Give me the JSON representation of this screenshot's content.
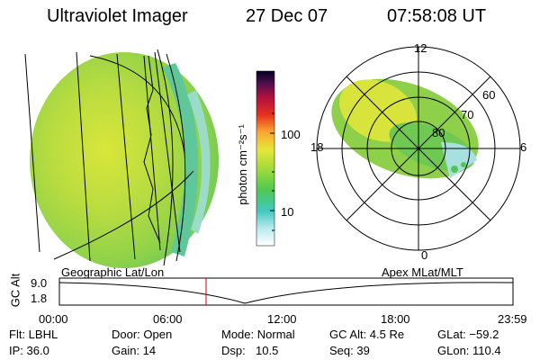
{
  "header": {
    "title": "Ultraviolet Imager",
    "date": "27 Dec 07",
    "time": "07:58:08 UT"
  },
  "colorbar": {
    "label": "photon cm⁻²s⁻¹",
    "tick_labels": [
      "100",
      "10"
    ]
  },
  "polar": {
    "hour_labels": [
      "12",
      "18",
      "6",
      "0"
    ],
    "lat_labels": [
      "60",
      "70",
      "80"
    ]
  },
  "left_panel": {
    "label": "Geographic Lat/Lon"
  },
  "right_panel": {
    "label": "Apex MLat/MLT"
  },
  "altitude_plot": {
    "ylabel": "GC Alt",
    "ytick_labels": [
      "9.0",
      "1.8"
    ],
    "xtick_labels": [
      "00:00",
      "06:00",
      "12:00",
      "18:00",
      "23:59"
    ],
    "marker_color": "#cc0000"
  },
  "info": {
    "flt": "Flt: LBHL",
    "ip": "IP: 36.0",
    "door": "Door: Open",
    "gain": "Gain: 14",
    "mode": "Mode: Normal",
    "dsp_label": "Dsp:",
    "dsp_value": "10.5",
    "gc_alt": "GC Alt: 4.5 Re",
    "seq": "Seq: 39",
    "glat": "GLat: −59.2",
    "glon": "GLon: 110.4"
  }
}
